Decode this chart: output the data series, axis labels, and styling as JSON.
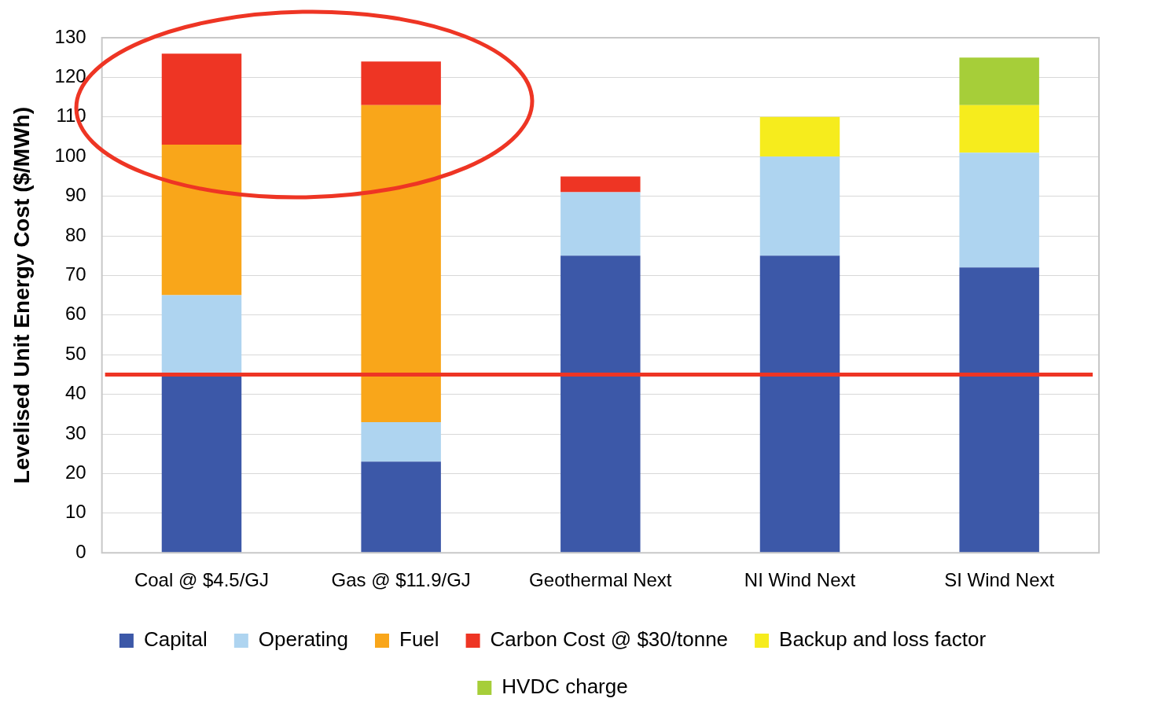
{
  "chart_data": {
    "type": "bar",
    "stacked": true,
    "ylabel": "Levelised Unit Energy Cost ($/MWh)",
    "categories": [
      "Coal @ $4.5/GJ",
      "Gas @ $11.9/GJ",
      "Geothermal Next",
      "NI Wind Next",
      "SI Wind Next"
    ],
    "series": [
      {
        "name": "Capital",
        "color": "#3c58a8",
        "values": [
          45,
          23,
          75,
          75,
          72
        ]
      },
      {
        "name": "Operating",
        "color": "#aed4f0",
        "values": [
          20,
          10,
          16,
          25,
          29
        ]
      },
      {
        "name": "Fuel",
        "color": "#f9a61a",
        "values": [
          38,
          80,
          null,
          null,
          null
        ]
      },
      {
        "name": "Carbon Cost @ $30/tonne",
        "color": "#ee3524",
        "values": [
          23,
          11,
          4,
          null,
          null
        ]
      },
      {
        "name": "Backup and loss factor",
        "color": "#f6ec1d",
        "values": [
          null,
          null,
          null,
          10,
          12
        ]
      },
      {
        "name": "HVDC charge",
        "color": "#a6ce39",
        "values": [
          null,
          null,
          null,
          null,
          12
        ]
      }
    ],
    "ylim": [
      0,
      130
    ],
    "yticks": [
      0,
      10,
      20,
      30,
      40,
      50,
      60,
      70,
      80,
      90,
      100,
      110,
      120,
      130
    ],
    "grid": "y",
    "legend": "bottom",
    "ref_lines": [
      {
        "axis": "y",
        "value": 45,
        "color": "#ee3524"
      }
    ]
  }
}
